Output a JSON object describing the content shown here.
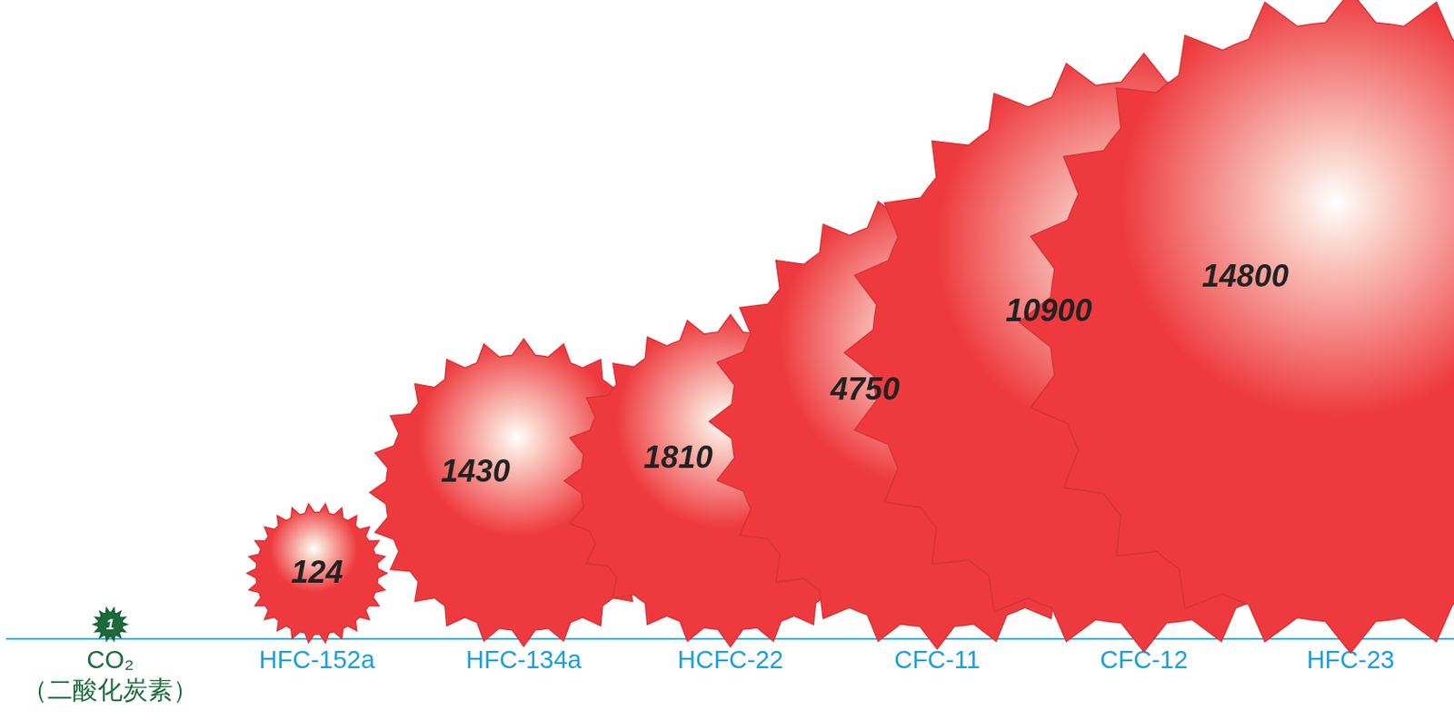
{
  "chart_data": {
    "type": "bubble",
    "categories": [
      "CO₂（二酸化炭素）",
      "HFC-152a",
      "HFC-134a",
      "HCFC-22",
      "CFC-11",
      "CFC-12",
      "HFC-23"
    ],
    "values": [
      1,
      124,
      1430,
      1810,
      4750,
      10900,
      14800
    ],
    "colors": [
      "#1b6b3a",
      "#ee3a3e",
      "#ee3a3e",
      "#ee3a3e",
      "#ee3a3e",
      "#ee3a3e",
      "#ee3a3e"
    ],
    "data_labels": true,
    "tick_labels": "x",
    "grid": false
  }
}
